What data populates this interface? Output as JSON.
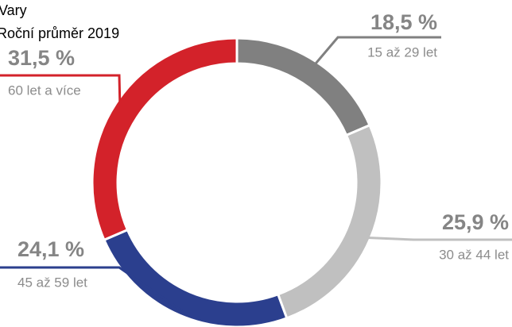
{
  "chart_data": {
    "type": "donut",
    "title": "Vary",
    "subtitle": "Roční průměr 2019",
    "categories": [
      "15 až 29 let",
      "30 až 44 let",
      "45 až 59 let",
      "60 let a více"
    ],
    "values": [
      18.5,
      25.9,
      24.1,
      31.5
    ],
    "value_labels": [
      "18,5 %",
      "25,9 %",
      "24,1 %",
      "31,5 %"
    ],
    "colors": [
      "#808080",
      "#c0c0c0",
      "#2b3f8e",
      "#d3222a"
    ]
  }
}
